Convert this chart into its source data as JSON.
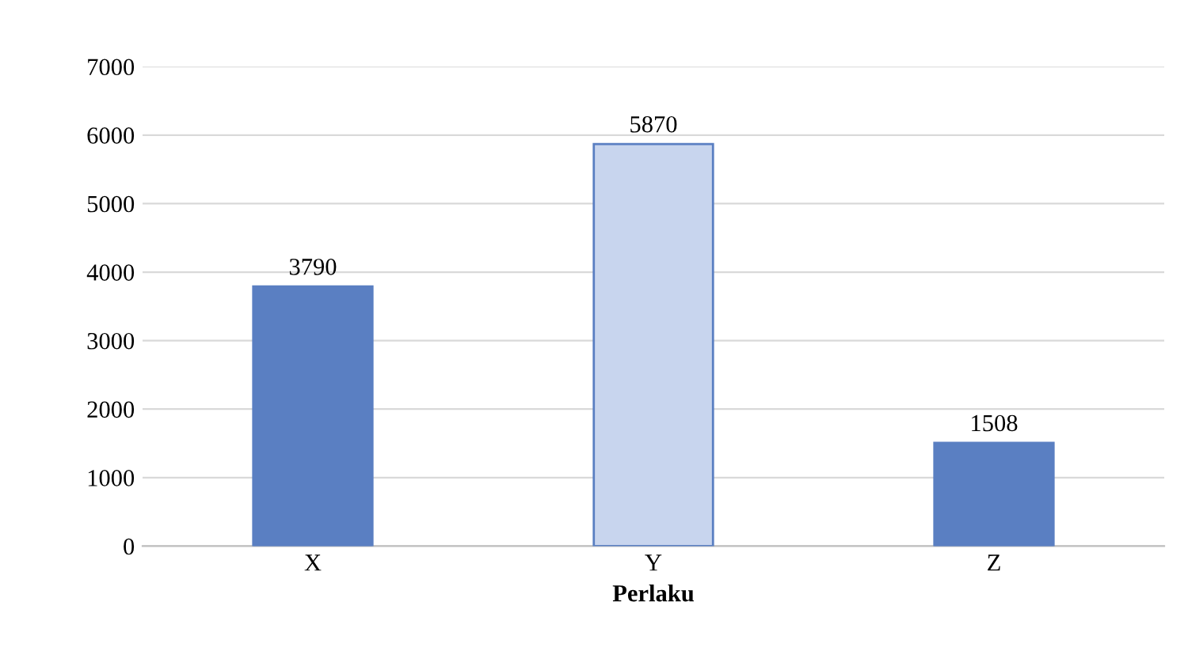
{
  "chart_data": {
    "type": "bar",
    "xlabel": "Perlaku",
    "categories": [
      "X",
      "Y",
      "Z"
    ],
    "values": [
      3790,
      5870,
      1508
    ],
    "colors": [
      "#5a7fc2",
      "#c8d5ee",
      "#5a7fc2"
    ],
    "ylim": [
      0,
      7000
    ],
    "yticks": [
      0,
      1000,
      2000,
      3000,
      4000,
      5000,
      6000,
      7000
    ],
    "grid": "y",
    "data_labels": true
  }
}
